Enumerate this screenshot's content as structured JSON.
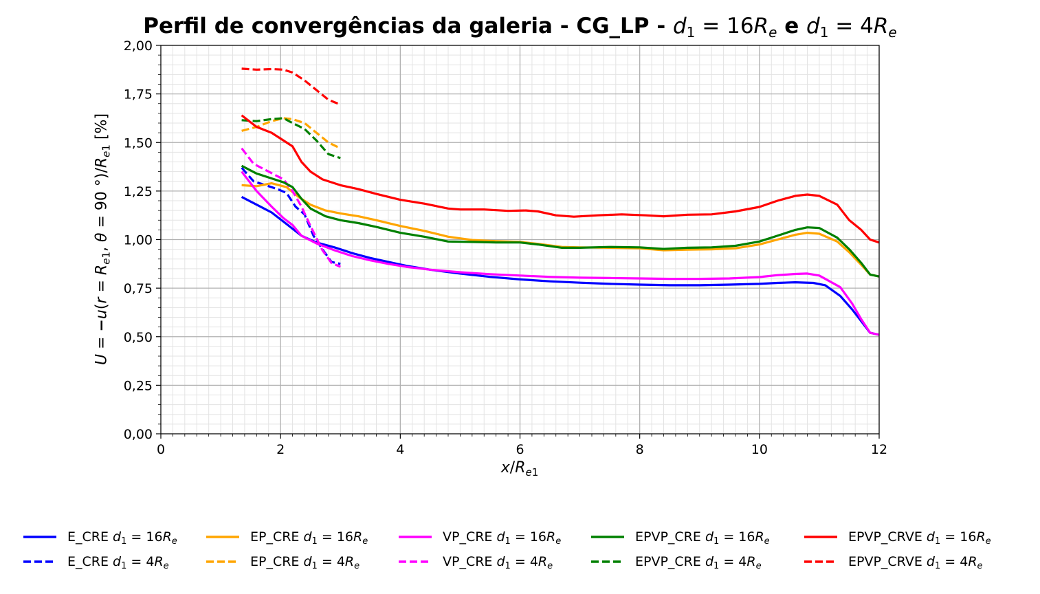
{
  "chart_data": {
    "type": "line",
    "title": "Perfil de convergências da galeria - CG_LP - d₁ = 16Rₑ e d₁ = 4Rₑ",
    "xlabel": "x/Rₑ₁",
    "ylabel": "U = −u(r = Rₑ₁, θ = 90°)/Rₑ₁ [%]",
    "xlim": [
      0,
      12
    ],
    "ylim": [
      0,
      2
    ],
    "x_ticks": [
      "0",
      "2",
      "4",
      "6",
      "8",
      "10",
      "12"
    ],
    "y_ticks": [
      "0,00",
      "0,25",
      "0,50",
      "0,75",
      "1,00",
      "1,25",
      "1,50",
      "1,75",
      "2,00"
    ],
    "grid": true,
    "minor_grid": true,
    "legend_position": "bottom",
    "series": [
      {
        "name": "E_CRE d₁ = 16Rₑ",
        "color": "#0000ff",
        "dash": "solid",
        "x": [
          1.35,
          1.6,
          1.85,
          2.1,
          2.35,
          2.6,
          2.9,
          3.2,
          3.5,
          3.8,
          4.1,
          4.5,
          5.0,
          5.5,
          6.0,
          6.5,
          7.0,
          7.5,
          8.0,
          8.5,
          9.0,
          9.5,
          10.0,
          10.3,
          10.6,
          10.9,
          11.1,
          11.35,
          11.55,
          11.7,
          11.85,
          12.0
        ],
        "y": [
          1.22,
          1.18,
          1.14,
          1.08,
          1.02,
          0.985,
          0.96,
          0.93,
          0.905,
          0.885,
          0.865,
          0.845,
          0.825,
          0.808,
          0.795,
          0.785,
          0.778,
          0.772,
          0.768,
          0.765,
          0.765,
          0.768,
          0.772,
          0.777,
          0.78,
          0.777,
          0.765,
          0.71,
          0.64,
          0.58,
          0.52,
          0.51
        ]
      },
      {
        "name": "E_CRE d₁ = 4Rₑ",
        "color": "#0000ff",
        "dash": "dashed",
        "x": [
          1.35,
          1.55,
          1.75,
          1.95,
          2.1,
          2.25,
          2.4,
          2.55,
          2.7,
          2.85,
          3.0
        ],
        "y": [
          1.37,
          1.3,
          1.28,
          1.26,
          1.24,
          1.17,
          1.13,
          1.02,
          0.95,
          0.885,
          0.875
        ]
      },
      {
        "name": "EP_CRE d₁ = 16Rₑ",
        "color": "#ffa500",
        "dash": "solid",
        "x": [
          1.35,
          1.6,
          1.85,
          2.1,
          2.3,
          2.5,
          2.75,
          3.0,
          3.3,
          3.6,
          4.0,
          4.4,
          4.8,
          5.2,
          5.6,
          6.0,
          6.3,
          6.7,
          7.0,
          7.5,
          8.0,
          8.4,
          8.8,
          9.2,
          9.6,
          10.0,
          10.3,
          10.6,
          10.8,
          11.0,
          11.3,
          11.5,
          11.7,
          11.85,
          12.0
        ],
        "y": [
          1.28,
          1.275,
          1.29,
          1.27,
          1.22,
          1.18,
          1.15,
          1.135,
          1.12,
          1.1,
          1.07,
          1.045,
          1.015,
          0.998,
          0.992,
          0.988,
          0.978,
          0.962,
          0.96,
          0.958,
          0.955,
          0.945,
          0.948,
          0.95,
          0.955,
          0.975,
          1.0,
          1.025,
          1.035,
          1.03,
          0.99,
          0.935,
          0.87,
          0.82,
          0.81
        ]
      },
      {
        "name": "EP_CRE d₁ = 4Rₑ",
        "color": "#ffa500",
        "dash": "dashed",
        "x": [
          1.35,
          1.6,
          1.85,
          2.05,
          2.2,
          2.4,
          2.6,
          2.8,
          3.0
        ],
        "y": [
          1.56,
          1.58,
          1.61,
          1.625,
          1.62,
          1.6,
          1.55,
          1.5,
          1.47
        ]
      },
      {
        "name": "VP_CRE d₁ = 16Rₑ",
        "color": "#ff00ff",
        "dash": "solid",
        "x": [
          1.35,
          1.6,
          1.85,
          2.05,
          2.2,
          2.35,
          2.6,
          2.9,
          3.2,
          3.5,
          3.8,
          4.1,
          4.5,
          5.0,
          5.5,
          6.0,
          6.5,
          7.0,
          7.5,
          8.0,
          8.5,
          9.0,
          9.5,
          10.0,
          10.3,
          10.6,
          10.8,
          11.0,
          11.35,
          11.55,
          11.7,
          11.85,
          12.0
        ],
        "y": [
          1.35,
          1.25,
          1.17,
          1.11,
          1.075,
          1.02,
          0.98,
          0.945,
          0.915,
          0.893,
          0.875,
          0.86,
          0.845,
          0.832,
          0.822,
          0.815,
          0.808,
          0.804,
          0.802,
          0.8,
          0.798,
          0.798,
          0.8,
          0.807,
          0.817,
          0.823,
          0.825,
          0.815,
          0.755,
          0.67,
          0.59,
          0.52,
          0.51
        ]
      },
      {
        "name": "VP_CRE d₁ = 4Rₑ",
        "color": "#ff00ff",
        "dash": "dashed",
        "x": [
          1.35,
          1.55,
          1.8,
          2.05,
          2.2,
          2.35,
          2.5,
          2.7,
          2.85,
          3.0
        ],
        "y": [
          1.47,
          1.39,
          1.35,
          1.31,
          1.25,
          1.17,
          1.07,
          0.945,
          0.88,
          0.86
        ]
      },
      {
        "name": "EPVP_CRE d₁ = 16Rₑ",
        "color": "#008000",
        "dash": "solid",
        "x": [
          1.35,
          1.6,
          1.85,
          2.05,
          2.2,
          2.35,
          2.5,
          2.75,
          3.0,
          3.3,
          3.6,
          4.0,
          4.4,
          4.8,
          5.2,
          5.6,
          6.0,
          6.3,
          6.7,
          7.0,
          7.5,
          8.0,
          8.4,
          8.8,
          9.2,
          9.6,
          10.0,
          10.3,
          10.6,
          10.8,
          11.0,
          11.3,
          11.5,
          11.7,
          11.85,
          12.0
        ],
        "y": [
          1.38,
          1.34,
          1.315,
          1.295,
          1.27,
          1.21,
          1.16,
          1.12,
          1.1,
          1.085,
          1.065,
          1.035,
          1.015,
          0.99,
          0.988,
          0.985,
          0.985,
          0.975,
          0.958,
          0.958,
          0.962,
          0.96,
          0.952,
          0.958,
          0.96,
          0.968,
          0.99,
          1.02,
          1.05,
          1.063,
          1.06,
          1.01,
          0.95,
          0.88,
          0.82,
          0.81
        ]
      },
      {
        "name": "EPVP_CRE d₁ = 4Rₑ",
        "color": "#008000",
        "dash": "dashed",
        "x": [
          1.35,
          1.6,
          1.85,
          2.05,
          2.2,
          2.4,
          2.6,
          2.8,
          3.0
        ],
        "y": [
          1.615,
          1.61,
          1.62,
          1.625,
          1.6,
          1.57,
          1.51,
          1.44,
          1.42
        ]
      },
      {
        "name": "EPVP_CRVE d₁ = 16Rₑ",
        "color": "#ff0000",
        "dash": "solid",
        "x": [
          1.35,
          1.6,
          1.85,
          2.05,
          2.2,
          2.35,
          2.5,
          2.7,
          3.0,
          3.3,
          3.6,
          4.0,
          4.4,
          4.8,
          5.0,
          5.4,
          5.8,
          6.1,
          6.3,
          6.6,
          6.9,
          7.3,
          7.7,
          8.1,
          8.4,
          8.8,
          9.2,
          9.6,
          10.0,
          10.3,
          10.6,
          10.8,
          11.0,
          11.3,
          11.5,
          11.7,
          11.85,
          12.0
        ],
        "y": [
          1.64,
          1.58,
          1.55,
          1.51,
          1.48,
          1.4,
          1.35,
          1.31,
          1.28,
          1.26,
          1.235,
          1.205,
          1.185,
          1.16,
          1.155,
          1.155,
          1.148,
          1.15,
          1.145,
          1.125,
          1.118,
          1.125,
          1.13,
          1.125,
          1.12,
          1.128,
          1.13,
          1.145,
          1.168,
          1.2,
          1.225,
          1.232,
          1.225,
          1.18,
          1.1,
          1.05,
          1.0,
          0.985
        ]
      },
      {
        "name": "EPVP_CRVE d₁ = 4Rₑ",
        "color": "#ff0000",
        "dash": "dashed",
        "x": [
          1.35,
          1.6,
          1.85,
          2.05,
          2.2,
          2.4,
          2.6,
          2.8,
          3.0
        ],
        "y": [
          1.88,
          1.875,
          1.878,
          1.875,
          1.86,
          1.82,
          1.77,
          1.72,
          1.695
        ]
      }
    ]
  },
  "legend": [
    {
      "label": "E_CRE",
      "sub": "16",
      "color": "#0000ff",
      "dash": "solid"
    },
    {
      "label": "EP_CRE",
      "sub": "16",
      "color": "#ffa500",
      "dash": "solid"
    },
    {
      "label": "VP_CRE",
      "sub": "16",
      "color": "#ff00ff",
      "dash": "solid"
    },
    {
      "label": "EPVP_CRE",
      "sub": "16",
      "color": "#008000",
      "dash": "solid"
    },
    {
      "label": "EPVP_CRVE",
      "sub": "16",
      "color": "#ff0000",
      "dash": "solid"
    },
    {
      "label": "E_CRE",
      "sub": "4",
      "color": "#0000ff",
      "dash": "dashed"
    },
    {
      "label": "EP_CRE",
      "sub": "4",
      "color": "#ffa500",
      "dash": "dashed"
    },
    {
      "label": "VP_CRE",
      "sub": "4",
      "color": "#ff00ff",
      "dash": "dashed"
    },
    {
      "label": "EPVP_CRE",
      "sub": "4",
      "color": "#008000",
      "dash": "dashed"
    },
    {
      "label": "EPVP_CRVE",
      "sub": "4",
      "color": "#ff0000",
      "dash": "dashed"
    }
  ],
  "text": {
    "title_main": "Perfil de convergências da galeria - CG_LP - ",
    "title_d1a": "16",
    "title_mid": " e ",
    "title_d1b": "4"
  }
}
